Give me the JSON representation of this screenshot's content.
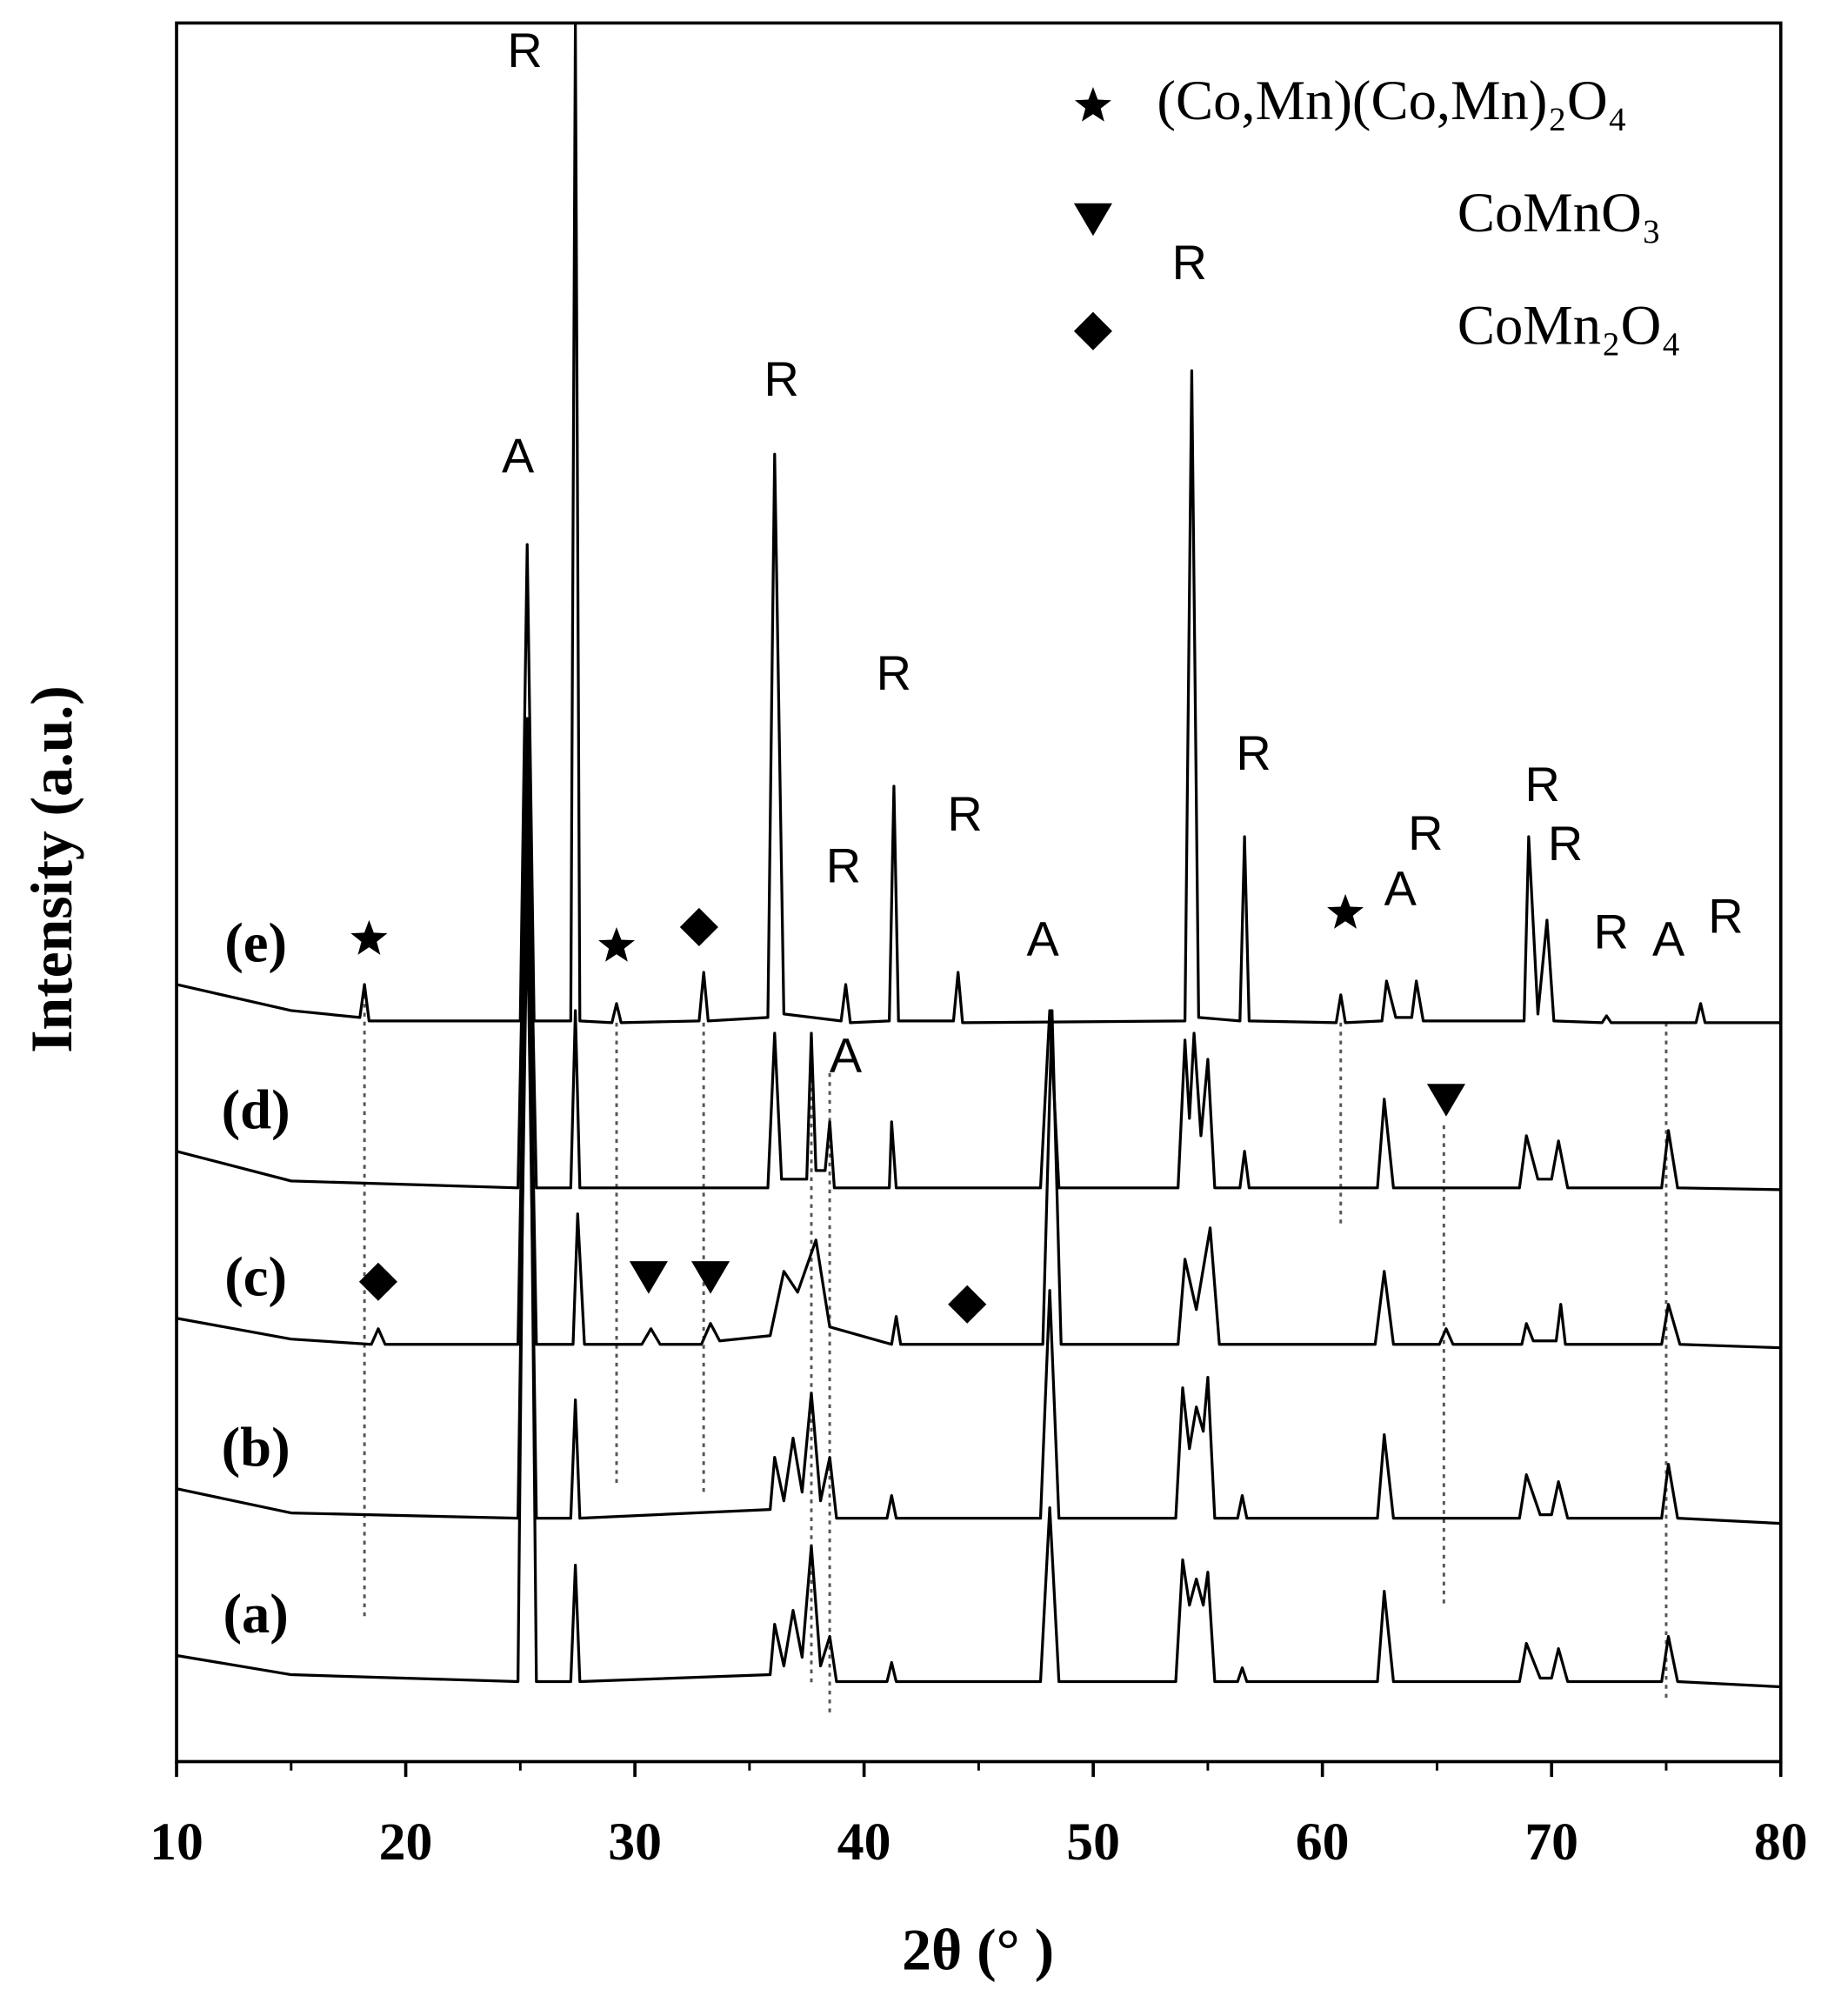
{
  "chart_data": {
    "type": "line",
    "xlabel": "2θ  (° )",
    "ylabel": "Intensity (a.u.)",
    "xlim": [
      10,
      80
    ],
    "ylim": [
      0,
      100
    ],
    "xticks": [
      10,
      20,
      30,
      40,
      50,
      60,
      70,
      80
    ],
    "xminorticks": [
      15,
      25,
      35,
      45,
      55,
      65,
      75
    ],
    "color": "#000000",
    "legend": "upper right",
    "legend_items": [
      {
        "symbol": "star",
        "label": "(Co,Mn)(Co,Mn)₂O₄"
      },
      {
        "symbol": "triangle",
        "label": "CoMnO₃"
      },
      {
        "symbol": "diamond",
        "label": "CoMn₂O₄"
      }
    ],
    "series": [
      {
        "name": "(e)",
        "color": "#000000",
        "x": [
          10,
          15,
          18.0,
          18.2,
          18.4,
          25.0,
          25.3,
          25.6,
          27.2,
          27.4,
          27.6,
          29.0,
          29.2,
          29.4,
          32.8,
          33.0,
          33.2,
          35.8,
          36.1,
          36.5,
          39.0,
          39.2,
          39.4,
          41.1,
          41.3,
          41.5,
          43.9,
          44.1,
          44.3,
          54.0,
          54.3,
          54.6,
          56.4,
          56.6,
          56.8,
          60.6,
          60.8,
          61.0,
          62.6,
          62.8,
          63.2,
          63.9,
          64.1,
          64.4,
          68.8,
          69.0,
          69.4,
          69.8,
          70.1,
          72.2,
          72.4,
          72.6,
          76.3,
          76.5,
          76.7,
          80
        ],
        "values": [
          44.7,
          43.2,
          42.8,
          44.7,
          42.6,
          42.6,
          70,
          42.6,
          42.6,
          100,
          42.6,
          42.5,
          43.6,
          42.5,
          42.6,
          45.4,
          42.6,
          42.8,
          75.2,
          43.0,
          42.6,
          44.7,
          42.5,
          42.6,
          56.1,
          42.6,
          42.6,
          45.4,
          42.5,
          42.6,
          80,
          42.8,
          42.6,
          53.2,
          42.6,
          42.5,
          44.1,
          42.5,
          42.6,
          44.9,
          42.8,
          42.8,
          44.9,
          42.6,
          42.6,
          53.2,
          43,
          48.4,
          42.6,
          42.5,
          42.9,
          42.5,
          42.5,
          43.6,
          42.5,
          42.5
        ]
      },
      {
        "name": "(d)",
        "color": "#000000",
        "x": [
          10,
          15,
          24.9,
          25.3,
          25.7,
          27.2,
          27.4,
          27.6,
          35.8,
          36.1,
          36.4,
          37.5,
          37.7,
          37.9,
          38.3,
          38.5,
          38.7,
          41.1,
          41.2,
          41.4,
          47.7,
          48.1,
          48.5,
          53.7,
          54.0,
          54.2,
          54.4,
          54.7,
          55.0,
          55.3,
          56.4,
          56.6,
          56.8,
          62.4,
          62.7,
          63.1,
          68.6,
          68.9,
          69.4,
          70.0,
          70.3,
          70.7,
          74.8,
          75.1,
          75.5,
          80
        ],
        "values": [
          35.1,
          33.4,
          33,
          58.8,
          33,
          33,
          43.2,
          33,
          33,
          41.9,
          33.5,
          33.5,
          41.9,
          34,
          34,
          36.8,
          33,
          33,
          36.8,
          33,
          33,
          43.2,
          33,
          33,
          41.5,
          37,
          41.9,
          36,
          40.4,
          33,
          33,
          35.1,
          33,
          33,
          38.1,
          33,
          33,
          36,
          33.5,
          33.5,
          35.7,
          33,
          33,
          36.3,
          33,
          32.9
        ]
      },
      {
        "name": "(c)",
        "color": "#000000",
        "x": [
          10,
          15,
          18.5,
          18.8,
          19.1,
          24.9,
          25.3,
          25.7,
          27.3,
          27.5,
          27.8,
          30.3,
          30.7,
          31.1,
          32.9,
          33.3,
          33.7,
          35.9,
          36.5,
          37.1,
          37.9,
          38.5,
          41.2,
          41.4,
          41.6,
          47.8,
          48.2,
          48.6,
          53.7,
          54.0,
          54.5,
          55.1,
          55.5,
          62.3,
          62.7,
          63.1,
          65.1,
          65.4,
          65.7,
          68.7,
          68.9,
          69.2,
          70.2,
          70.4,
          70.6,
          74.8,
          75.1,
          75.6,
          80
        ],
        "values": [
          25.5,
          24.3,
          24,
          24.9,
          24,
          24,
          53.5,
          24,
          24,
          31.5,
          24,
          24,
          24.9,
          24,
          24,
          25.2,
          24.2,
          24.5,
          28.2,
          27,
          30,
          25,
          24,
          25.6,
          24,
          24,
          43.2,
          24,
          24,
          28.9,
          26,
          30.7,
          24,
          24,
          28.2,
          24,
          24,
          24.9,
          24,
          24,
          25.2,
          24.2,
          24.2,
          26.3,
          24,
          24,
          26.3,
          24,
          23.8
        ]
      },
      {
        "name": "(b)",
        "color": "#000000",
        "x": [
          10,
          15,
          24.9,
          25.3,
          25.7,
          27.2,
          27.4,
          27.6,
          35.9,
          36.1,
          36.5,
          36.9,
          37.3,
          37.7,
          38.1,
          38.5,
          38.8,
          41.0,
          41.2,
          41.4,
          47.7,
          48.1,
          48.5,
          53.6,
          53.9,
          54.2,
          54.5,
          54.8,
          55.0,
          55.3,
          56.3,
          56.5,
          56.7,
          62.4,
          62.7,
          63.1,
          68.6,
          68.9,
          69.5,
          70.0,
          70.3,
          70.7,
          74.8,
          75.1,
          75.5,
          80
        ],
        "values": [
          15.7,
          14.3,
          14,
          49.9,
          14,
          14,
          20.8,
          14,
          14.5,
          17.5,
          15,
          18.6,
          15.5,
          21.2,
          15,
          17.5,
          14,
          14,
          15.3,
          14,
          14,
          27.1,
          14,
          14,
          21.5,
          18,
          20.4,
          19,
          22.1,
          14,
          14,
          15.3,
          14,
          14,
          18.8,
          14,
          14,
          16.5,
          14.2,
          14.2,
          16.1,
          14,
          14,
          17.1,
          14,
          13.7
        ]
      },
      {
        "name": "(a)",
        "color": "#000000",
        "x": [
          10,
          15,
          24.9,
          25.3,
          25.7,
          27.2,
          27.4,
          27.6,
          35.9,
          36.1,
          36.5,
          36.9,
          37.3,
          37.7,
          38.1,
          38.5,
          38.8,
          41.0,
          41.2,
          41.4,
          47.7,
          48.1,
          48.5,
          53.6,
          53.9,
          54.2,
          54.5,
          54.8,
          55.0,
          55.3,
          56.3,
          56.5,
          56.7,
          62.4,
          62.7,
          63.1,
          68.6,
          68.9,
          69.5,
          70.0,
          70.3,
          70.7,
          74.8,
          75.1,
          75.5,
          80
        ],
        "values": [
          6.1,
          5.0,
          4.6,
          60,
          4.6,
          4.6,
          11.3,
          4.6,
          5,
          7.9,
          5.5,
          8.7,
          6,
          12.4,
          5.5,
          7.2,
          4.6,
          4.6,
          5.7,
          4.6,
          4.6,
          14.6,
          4.6,
          4.6,
          11.6,
          9,
          10.5,
          9,
          10.9,
          4.6,
          4.6,
          5.4,
          4.6,
          4.6,
          9.8,
          4.6,
          4.6,
          6.8,
          4.8,
          4.8,
          6.5,
          4.6,
          4.6,
          7.2,
          4.6,
          4.3
        ]
      }
    ],
    "annotations": [
      {
        "text": "R",
        "x": 25.2,
        "y": 98.2
      },
      {
        "text": "A",
        "x": 24.9,
        "y": 74.9
      },
      {
        "text": "R",
        "x": 36.4,
        "y": 79.3
      },
      {
        "text": "R",
        "x": 41.3,
        "y": 62.4
      },
      {
        "text": "R",
        "x": 39.1,
        "y": 51.3
      },
      {
        "text": "R",
        "x": 44.4,
        "y": 54.3
      },
      {
        "text": "A",
        "x": 47.8,
        "y": 47.1
      },
      {
        "text": "R",
        "x": 54.2,
        "y": 86.0
      },
      {
        "text": "R",
        "x": 57.0,
        "y": 57.8
      },
      {
        "text": "A",
        "x": 63.4,
        "y": 50.0
      },
      {
        "text": "R",
        "x": 64.5,
        "y": 53.2
      },
      {
        "text": "R",
        "x": 69.6,
        "y": 56.0
      },
      {
        "text": "R",
        "x": 70.6,
        "y": 52.6
      },
      {
        "text": "R",
        "x": 72.6,
        "y": 47.5
      },
      {
        "text": "A",
        "x": 75.1,
        "y": 47.1
      },
      {
        "text": "R",
        "x": 77.6,
        "y": 48.4
      },
      {
        "text": "A",
        "x": 39.2,
        "y": 40.4
      }
    ],
    "markers": [
      {
        "symbol": "star",
        "x": 18.4,
        "y": 47.3
      },
      {
        "symbol": "star",
        "x": 29.2,
        "y": 46.9
      },
      {
        "symbol": "diamond",
        "x": 32.8,
        "y": 48.0
      },
      {
        "symbol": "star",
        "x": 61.0,
        "y": 48.8
      },
      {
        "symbol": "triangle",
        "x": 65.4,
        "y": 38.1
      },
      {
        "symbol": "diamond",
        "x": 18.8,
        "y": 27.6
      },
      {
        "symbol": "triangle",
        "x": 30.6,
        "y": 27.9
      },
      {
        "symbol": "triangle",
        "x": 33.3,
        "y": 27.9
      },
      {
        "symbol": "diamond",
        "x": 44.5,
        "y": 26.3
      }
    ],
    "reference_lines": [
      {
        "x": 18.2,
        "y": [
          44.1,
          8.3
        ]
      },
      {
        "x": 29.2,
        "y": [
          42.5,
          16.0
        ]
      },
      {
        "x": 33.0,
        "y": [
          42.5,
          15.3
        ]
      },
      {
        "x": 37.7,
        "y": [
          40.3,
          4.3
        ]
      },
      {
        "x": 38.5,
        "y": [
          39.6,
          2.8
        ]
      },
      {
        "x": 60.8,
        "y": [
          42.5,
          30.7
        ]
      },
      {
        "x": 65.3,
        "y": [
          36.6,
          9.0
        ]
      },
      {
        "x": 75.0,
        "y": [
          42.5,
          3.5
        ]
      }
    ]
  }
}
